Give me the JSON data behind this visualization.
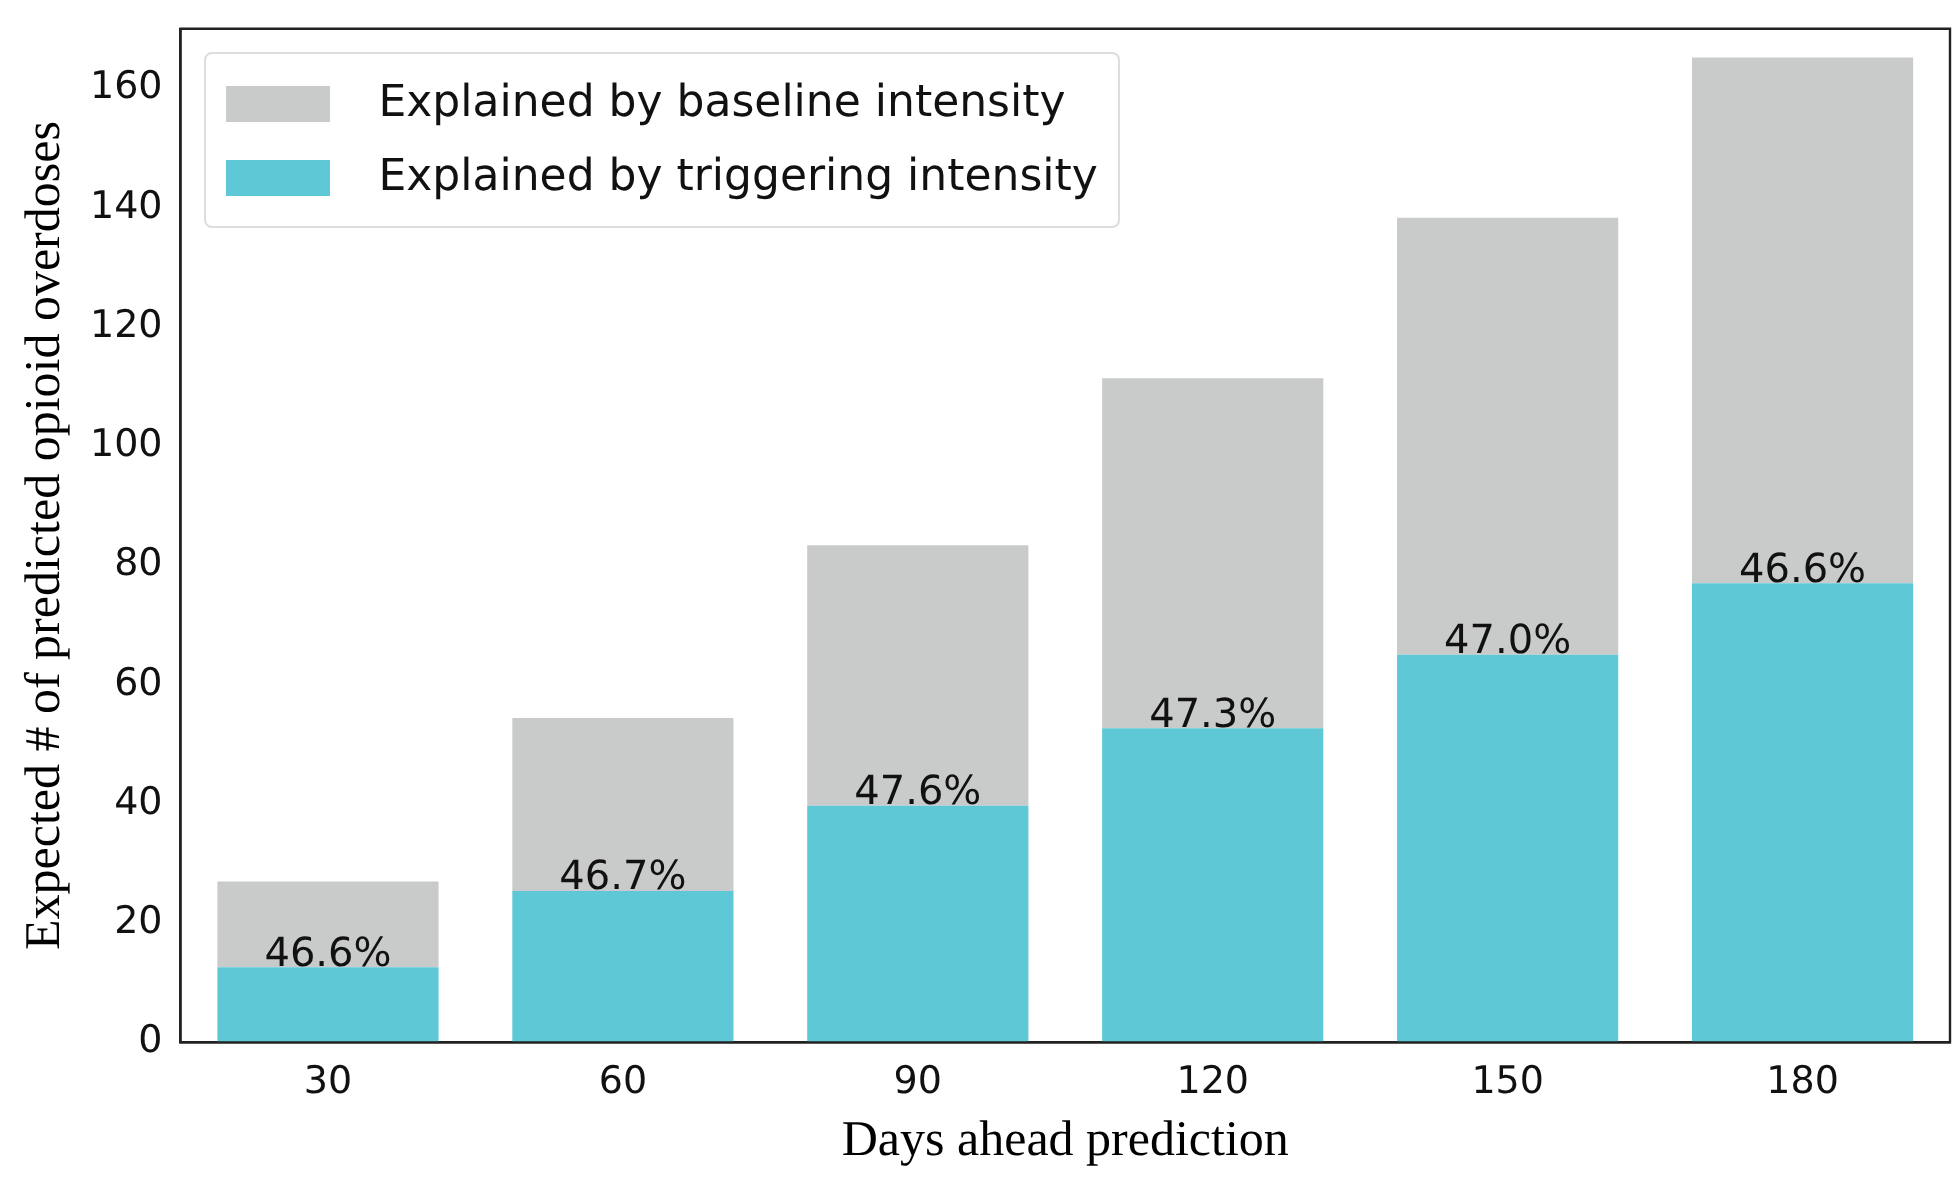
{
  "chart_data": {
    "type": "bar",
    "xlabel": "Days ahead prediction",
    "ylabel": "Expected # of predicted opioid overdoses",
    "categories": [
      "30",
      "60",
      "90",
      "120",
      "150",
      "180"
    ],
    "stacked": true,
    "series": [
      {
        "name": "Explained by triggering intensity",
        "color": "#5ec8d6",
        "values": [
          12.6,
          25.4,
          39.7,
          52.7,
          65.0,
          77.0
        ]
      },
      {
        "name": "Explained by baseline intensity",
        "color": "#c9caca",
        "values": [
          14.4,
          29.0,
          43.7,
          58.7,
          73.3,
          88.2
        ]
      }
    ],
    "annotations": [
      {
        "text": "46.6%",
        "x": "30",
        "y": 12.6
      },
      {
        "text": "46.7%",
        "x": "60",
        "y": 25.4
      },
      {
        "text": "47.6%",
        "x": "90",
        "y": 39.7
      },
      {
        "text": "47.3%",
        "x": "120",
        "y": 52.7
      },
      {
        "text": "47.0%",
        "x": "150",
        "y": 65.0
      },
      {
        "text": "46.6%",
        "x": "180",
        "y": 77.0
      }
    ],
    "ylim": [
      0,
      170
    ],
    "yticks": [
      0,
      20,
      40,
      60,
      80,
      100,
      120,
      140,
      160
    ],
    "grid": false,
    "legend": "top left"
  }
}
